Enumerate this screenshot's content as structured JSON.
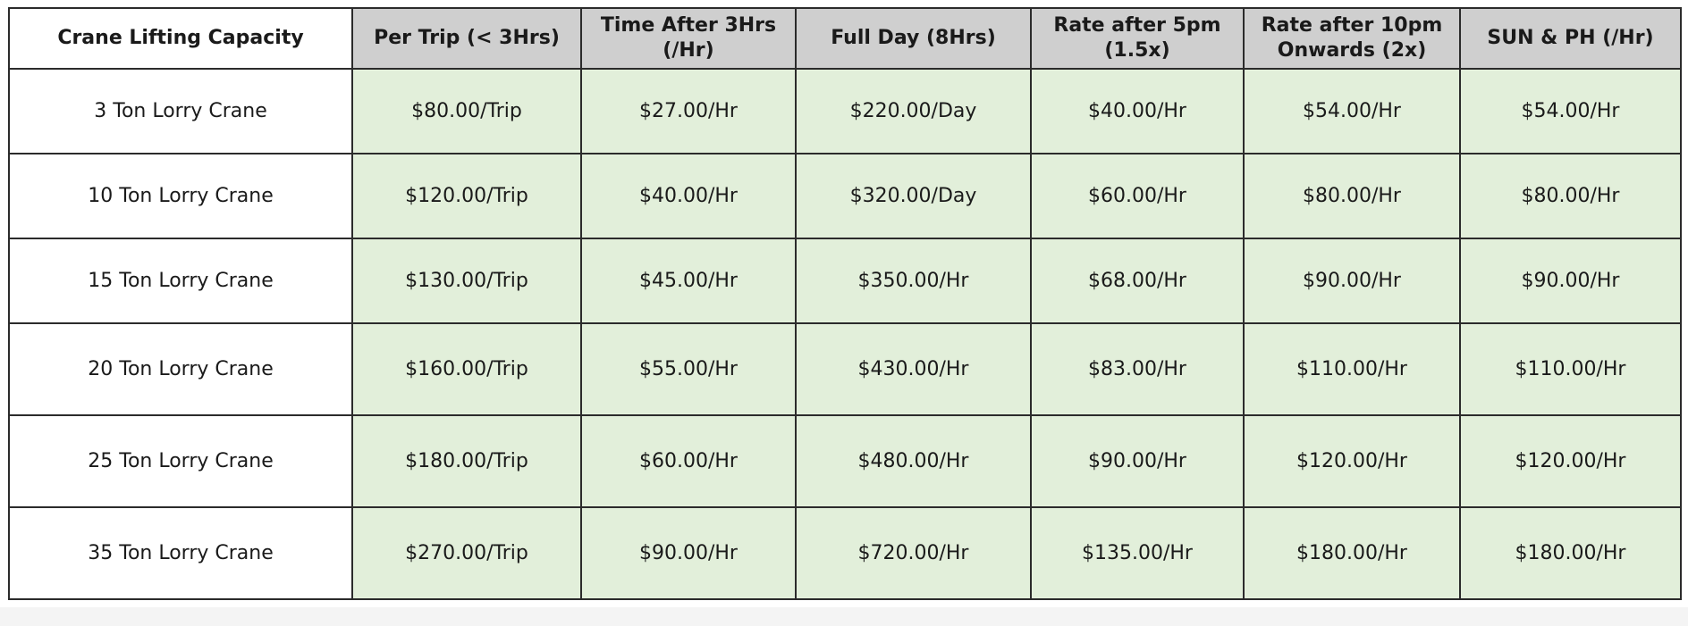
{
  "table": {
    "headers": [
      "Crane Lifting Capacity",
      "Per Trip (< 3Hrs)",
      "Time After 3Hrs (/Hr)",
      "Full Day (8Hrs)",
      "Rate after 5pm (1.5x)",
      "Rate after 10pm Onwards (2x)",
      "SUN & PH (/Hr)"
    ],
    "rows": [
      [
        "3 Ton Lorry Crane",
        "$80.00/Trip",
        "$27.00/Hr",
        "$220.00/Day",
        "$40.00/Hr",
        "$54.00/Hr",
        "$54.00/Hr"
      ],
      [
        "10 Ton Lorry Crane",
        "$120.00/Trip",
        "$40.00/Hr",
        "$320.00/Day",
        "$60.00/Hr",
        "$80.00/Hr",
        "$80.00/Hr"
      ],
      [
        "15 Ton Lorry Crane",
        "$130.00/Trip",
        "$45.00/Hr",
        "$350.00/Hr",
        "$68.00/Hr",
        "$90.00/Hr",
        "$90.00/Hr"
      ],
      [
        "20 Ton Lorry Crane",
        "$160.00/Trip",
        "$55.00/Hr",
        "$430.00/Hr",
        "$83.00/Hr",
        "$110.00/Hr",
        "$110.00/Hr"
      ],
      [
        "25 Ton Lorry Crane",
        "$180.00/Trip",
        "$60.00/Hr",
        "$480.00/Hr",
        "$90.00/Hr",
        "$120.00/Hr",
        "$120.00/Hr"
      ],
      [
        "35 Ton Lorry Crane",
        "$270.00/Trip",
        "$90.00/Hr",
        "$720.00/Hr",
        "$135.00/Hr",
        "$180.00/Hr",
        "$180.00/Hr"
      ]
    ]
  },
  "colors": {
    "header_fill": "#cfcfcf",
    "value_fill": "#e2efda",
    "capacity_fill": "#ffffff",
    "border": "#2b2b2b"
  }
}
